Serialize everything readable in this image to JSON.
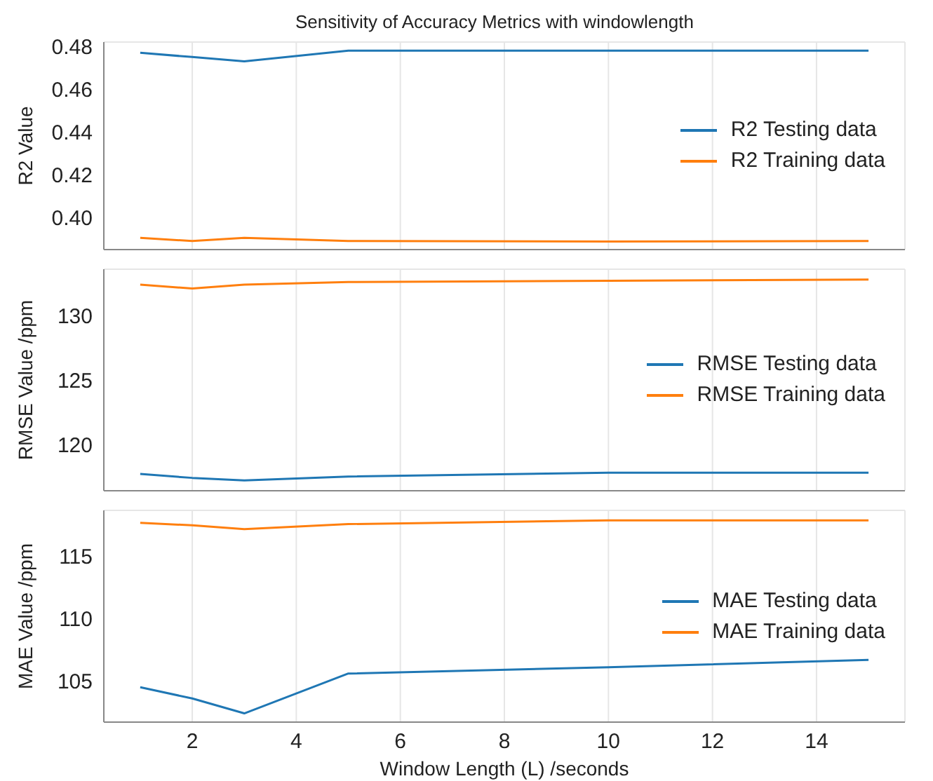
{
  "chart_data": [
    {
      "type": "line",
      "title": "Sensitivity of Accuracy Metrics with windowlength",
      "ylabel": "R2 Value",
      "x": [
        1,
        2,
        3,
        5,
        10,
        15
      ],
      "xlim": [
        0.3,
        15.7
      ],
      "xticks": [
        2,
        4,
        6,
        8,
        10,
        12,
        14
      ],
      "ylim": [
        0.385,
        0.482
      ],
      "yticks": [
        {
          "value": 0.4,
          "label": "0.40"
        },
        0.42,
        0.44,
        0.46,
        0.48
      ],
      "grid": true,
      "legend": "right",
      "tick_labels": "y",
      "series": [
        {
          "name": "R2 Testing data",
          "color": "#1f77b4",
          "values": [
            0.477,
            0.475,
            0.473,
            0.478,
            0.478,
            0.478
          ]
        },
        {
          "name": "R2 Training data",
          "color": "#ff7f0e",
          "values": [
            0.3905,
            0.389,
            0.3905,
            0.389,
            0.3888,
            0.389
          ]
        }
      ]
    },
    {
      "type": "line",
      "ylabel": "RMSE Value /ppm",
      "x": [
        1,
        2,
        3,
        5,
        10,
        15
      ],
      "xlim": [
        0.3,
        15.7
      ],
      "xticks": [
        2,
        4,
        6,
        8,
        10,
        12,
        14
      ],
      "ylim": [
        116.4,
        133.6
      ],
      "yticks": [
        120,
        125,
        130
      ],
      "grid": true,
      "legend": "right",
      "tick_labels": "y",
      "series": [
        {
          "name": "RMSE Testing data",
          "color": "#1f77b4",
          "values": [
            117.7,
            117.4,
            117.2,
            117.5,
            117.8,
            117.8
          ]
        },
        {
          "name": "RMSE Training data",
          "color": "#ff7f0e",
          "values": [
            132.4,
            132.1,
            132.4,
            132.6,
            132.7,
            132.8
          ]
        }
      ]
    },
    {
      "type": "line",
      "xlabel": "Window Length (L) /seconds",
      "ylabel": "MAE Value /ppm",
      "x": [
        1,
        2,
        3,
        5,
        10,
        15
      ],
      "xlim": [
        0.3,
        15.7
      ],
      "xticks": [
        2,
        4,
        6,
        8,
        10,
        12,
        14
      ],
      "ylim": [
        101.7,
        118.7
      ],
      "yticks": [
        105,
        110,
        115
      ],
      "grid": true,
      "legend": "right",
      "series": [
        {
          "name": "MAE Testing data",
          "color": "#1f77b4",
          "values": [
            104.5,
            103.6,
            102.4,
            105.6,
            106.1,
            106.7
          ]
        },
        {
          "name": "MAE Training data",
          "color": "#ff7f0e",
          "values": [
            117.7,
            117.5,
            117.2,
            117.6,
            117.9,
            117.9
          ]
        }
      ]
    }
  ]
}
